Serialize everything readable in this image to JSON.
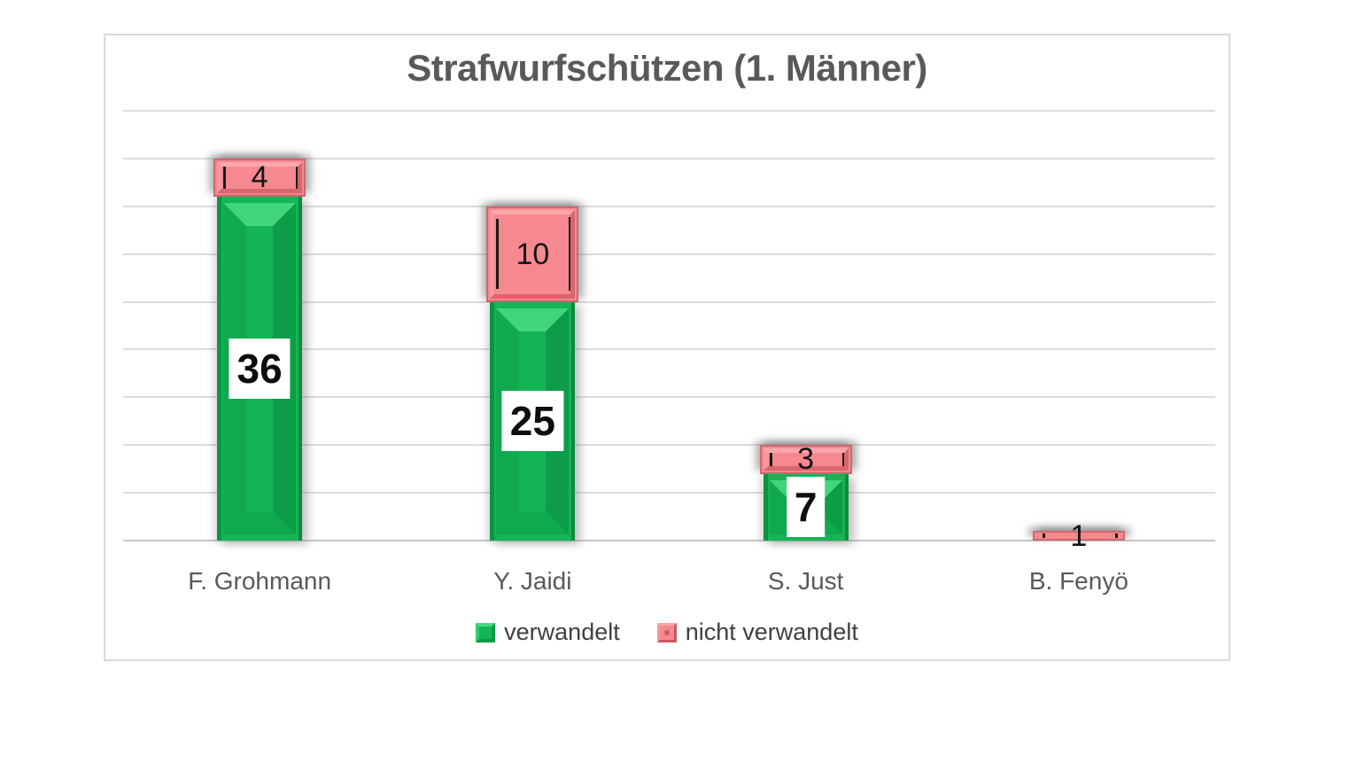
{
  "chart_data": {
    "type": "bar",
    "stacked": true,
    "title": "Strafwurfschützen (1. Männer)",
    "xlabel": "",
    "ylabel": "",
    "categories": [
      "F. Grohmann",
      "Y. Jaidi",
      "S. Just",
      "B. Fenyö"
    ],
    "series": [
      {
        "name": "verwandelt",
        "color": "#14b554",
        "values": [
          36,
          25,
          7,
          0
        ]
      },
      {
        "name": "nicht verwandelt",
        "color": "#f5898f",
        "values": [
          4,
          10,
          3,
          1
        ]
      }
    ],
    "ylim": [
      0,
      45
    ],
    "grid_step": 5,
    "grid": true,
    "y_tick_labels_visible": false,
    "legend_position": "bottom",
    "data_labels": true,
    "colors": {
      "title_text": "#595959",
      "category_text": "#595959",
      "legend_text": "#404040",
      "gridline": "#d9d9d9",
      "frame_border": "#d9d9d9",
      "label_box_fill": "#ffffff",
      "label_text": "#0d0d0d"
    }
  }
}
